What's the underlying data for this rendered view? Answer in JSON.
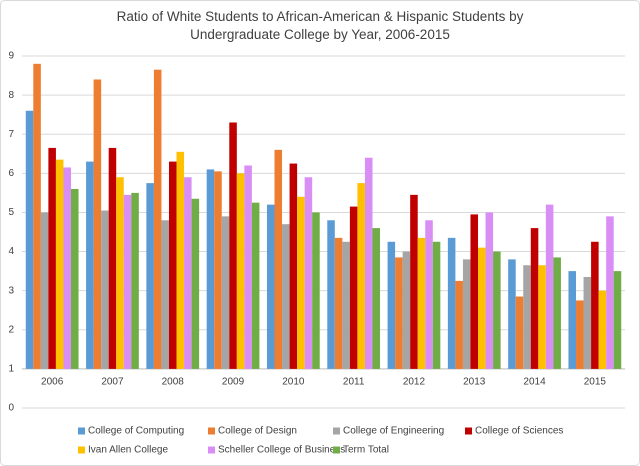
{
  "chart_data": {
    "type": "bar",
    "title": "Ratio of White Students to African-American & Hispanic Students by Undergraduate College by Year, 2006-2015",
    "categories": [
      "2006",
      "2007",
      "2008",
      "2009",
      "2010",
      "2011",
      "2012",
      "2013",
      "2014",
      "2015"
    ],
    "series": [
      {
        "name": "College of Computing",
        "color": "#5b9bd5",
        "values": [
          7.6,
          6.3,
          5.75,
          6.1,
          5.2,
          4.8,
          4.25,
          4.35,
          3.8,
          3.5
        ]
      },
      {
        "name": "College of Design",
        "color": "#ed7d31",
        "values": [
          8.8,
          8.4,
          8.65,
          6.05,
          6.6,
          4.35,
          3.85,
          3.25,
          2.85,
          2.75
        ]
      },
      {
        "name": "College of Engineering",
        "color": "#a5a5a5",
        "values": [
          5.0,
          5.05,
          4.8,
          4.9,
          4.7,
          4.25,
          4.0,
          3.8,
          3.65,
          3.35
        ]
      },
      {
        "name": "College of Sciences",
        "color": "#c00000",
        "values": [
          6.65,
          6.65,
          6.3,
          7.3,
          6.25,
          5.15,
          5.45,
          4.95,
          4.6,
          4.25
        ]
      },
      {
        "name": "Ivan Allen College",
        "color": "#ffc000",
        "values": [
          6.35,
          5.9,
          6.55,
          6.0,
          5.4,
          5.75,
          4.35,
          4.1,
          3.65,
          3.0
        ]
      },
      {
        "name": "Scheller College of Business",
        "color": "#d98ef5",
        "values": [
          6.15,
          5.45,
          5.9,
          6.2,
          5.9,
          6.4,
          4.8,
          5.0,
          5.2,
          4.9
        ]
      },
      {
        "name": "Term Total",
        "color": "#70ad47",
        "values": [
          5.6,
          5.5,
          5.35,
          5.25,
          5.0,
          4.6,
          4.25,
          4.0,
          3.85,
          3.5
        ]
      }
    ],
    "ylim": [
      0,
      9
    ],
    "yticks": [
      0,
      1,
      2,
      3,
      4,
      5,
      6,
      7,
      8,
      9
    ],
    "x_axis_crosses_at": 1,
    "grid": true,
    "legend": "bottom"
  }
}
